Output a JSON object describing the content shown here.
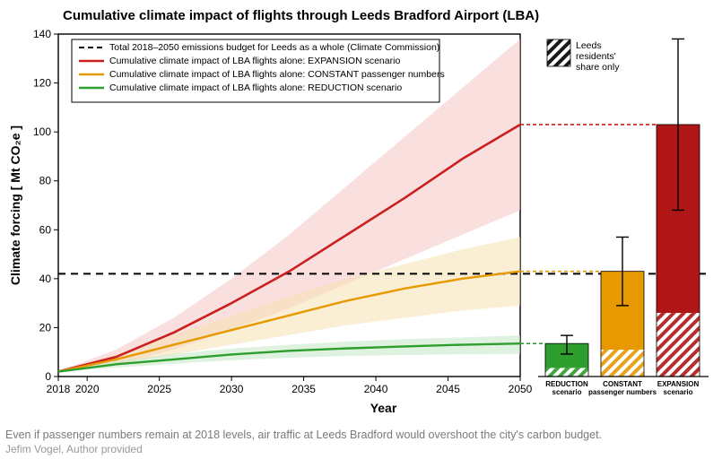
{
  "title": "Cumulative climate impact of flights through Leeds Bradford Airport (LBA)",
  "caption": "Even if passenger numbers remain at 2018 levels, air traffic at Leeds Bradford would overshoot the city's carbon budget.",
  "credit": "Jefim Vogel, Author provided",
  "chart": {
    "xlim": [
      2018,
      2050
    ],
    "ylim": [
      0,
      140
    ],
    "xticks": [
      2018,
      2020,
      2025,
      2030,
      2035,
      2040,
      2045,
      2050
    ],
    "yticks": [
      0,
      20,
      40,
      60,
      80,
      100,
      120,
      140
    ],
    "xlabel": "Year",
    "ylabel": "Climate forcing  [ Mt CO₂e ]",
    "grid_color": "#dddddd",
    "axis_color": "#000000",
    "budget_line": {
      "value": 42,
      "color": "#000000",
      "dash": "8 6",
      "width": 2
    },
    "series": {
      "expansion": {
        "color": "#cc1f1f",
        "fill": "#f5c4c4",
        "width": 2.6,
        "center": [
          [
            2018,
            2
          ],
          [
            2022,
            8
          ],
          [
            2026,
            18
          ],
          [
            2030,
            30
          ],
          [
            2034,
            43
          ],
          [
            2038,
            58
          ],
          [
            2042,
            73
          ],
          [
            2046,
            89
          ],
          [
            2050,
            103
          ]
        ],
        "low": [
          [
            2018,
            2
          ],
          [
            2022,
            5
          ],
          [
            2026,
            11
          ],
          [
            2030,
            19
          ],
          [
            2034,
            28
          ],
          [
            2038,
            38
          ],
          [
            2042,
            48
          ],
          [
            2046,
            58
          ],
          [
            2050,
            68
          ]
        ],
        "high": [
          [
            2018,
            2
          ],
          [
            2022,
            11
          ],
          [
            2026,
            24
          ],
          [
            2030,
            40
          ],
          [
            2034,
            58
          ],
          [
            2038,
            78
          ],
          [
            2042,
            98
          ],
          [
            2046,
            118
          ],
          [
            2050,
            138
          ]
        ]
      },
      "constant": {
        "color": "#e69900",
        "fill": "#f6e0b0",
        "width": 2.4,
        "center": [
          [
            2018,
            2
          ],
          [
            2022,
            7
          ],
          [
            2026,
            13
          ],
          [
            2030,
            19
          ],
          [
            2034,
            25
          ],
          [
            2038,
            31
          ],
          [
            2042,
            36
          ],
          [
            2046,
            40
          ],
          [
            2050,
            43
          ]
        ],
        "low": [
          [
            2018,
            2
          ],
          [
            2022,
            5
          ],
          [
            2026,
            9
          ],
          [
            2030,
            13
          ],
          [
            2034,
            17
          ],
          [
            2038,
            21
          ],
          [
            2042,
            24
          ],
          [
            2046,
            27
          ],
          [
            2050,
            29
          ]
        ],
        "high": [
          [
            2018,
            2
          ],
          [
            2022,
            9
          ],
          [
            2026,
            17
          ],
          [
            2030,
            25
          ],
          [
            2034,
            33
          ],
          [
            2038,
            40
          ],
          [
            2042,
            46
          ],
          [
            2046,
            52
          ],
          [
            2050,
            57
          ]
        ]
      },
      "reduction": {
        "color": "#2e9e2e",
        "fill": "#c4e7c4",
        "width": 2.4,
        "center": [
          [
            2018,
            2
          ],
          [
            2022,
            5
          ],
          [
            2026,
            7
          ],
          [
            2030,
            9
          ],
          [
            2034,
            10.5
          ],
          [
            2038,
            11.5
          ],
          [
            2042,
            12.3
          ],
          [
            2046,
            13
          ],
          [
            2050,
            13.5
          ]
        ],
        "low": [
          [
            2018,
            2
          ],
          [
            2022,
            3.6
          ],
          [
            2026,
            5.2
          ],
          [
            2030,
            6.6
          ],
          [
            2034,
            7.7
          ],
          [
            2038,
            8.4
          ],
          [
            2042,
            8.8
          ],
          [
            2046,
            9.1
          ],
          [
            2050,
            9.2
          ]
        ],
        "high": [
          [
            2018,
            2
          ],
          [
            2022,
            6.4
          ],
          [
            2026,
            9.2
          ],
          [
            2030,
            11.4
          ],
          [
            2034,
            13
          ],
          [
            2038,
            14.3
          ],
          [
            2042,
            15.3
          ],
          [
            2046,
            16
          ],
          [
            2050,
            16.8
          ]
        ]
      }
    },
    "legend": {
      "bg": "#ffffff",
      "border": "#000000",
      "items": [
        {
          "type": "dash",
          "color": "#000000",
          "label": "Total 2018–2050 emissions budget for Leeds as a whole (Climate Commission)"
        },
        {
          "type": "line",
          "color": "#cc1f1f",
          "label": "Cumulative climate impact of LBA flights alone: EXPANSION scenario"
        },
        {
          "type": "line",
          "color": "#e69900",
          "label": "Cumulative climate impact of LBA flights alone: CONSTANT passenger numbers"
        },
        {
          "type": "line",
          "color": "#2e9e2e",
          "label": "Cumulative climate impact of LBA flights alone: REDUCTION scenario"
        }
      ]
    },
    "share_legend": {
      "label_l1": "Leeds",
      "label_l2": "residents'",
      "label_l3": "share only"
    },
    "bars": [
      {
        "key": "REDUCTION",
        "sub": "scenario",
        "color": "#2e9e2e",
        "value": 13.5,
        "hatch": 3.5,
        "err_lo": 9.2,
        "err_hi": 16.8
      },
      {
        "key": "CONSTANT",
        "sub": "passenger numbers",
        "color": "#e69900",
        "value": 43,
        "hatch": 11,
        "err_lo": 29,
        "err_hi": 57
      },
      {
        "key": "EXPANSION",
        "sub": "scenario",
        "color": "#b01616",
        "value": 103,
        "hatch": 26,
        "err_lo": 68,
        "err_hi": 138
      }
    ],
    "bar_colors": {
      "hatch_stroke_opacity": 0.9
    }
  }
}
